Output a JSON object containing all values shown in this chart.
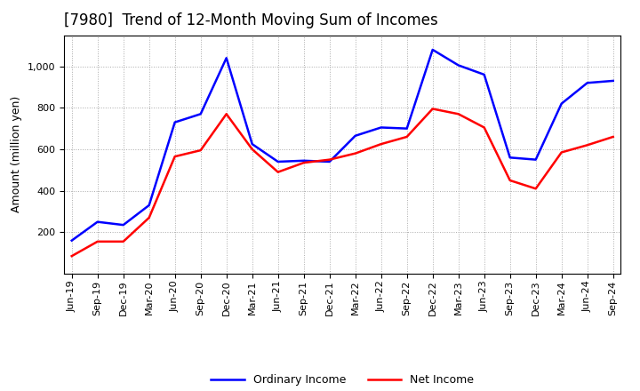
{
  "title": "[7980]  Trend of 12-Month Moving Sum of Incomes",
  "ylabel": "Amount (million yen)",
  "labels": [
    "Jun-19",
    "Sep-19",
    "Dec-19",
    "Mar-20",
    "Jun-20",
    "Sep-20",
    "Dec-20",
    "Mar-21",
    "Jun-21",
    "Sep-21",
    "Dec-21",
    "Mar-22",
    "Jun-22",
    "Sep-22",
    "Dec-22",
    "Mar-23",
    "Jun-23",
    "Sep-23",
    "Dec-23",
    "Mar-24",
    "Jun-24",
    "Sep-24"
  ],
  "ordinary_income": [
    160,
    250,
    235,
    330,
    730,
    770,
    1040,
    625,
    540,
    545,
    540,
    665,
    705,
    700,
    1080,
    1005,
    960,
    560,
    550,
    820,
    920,
    930
  ],
  "net_income": [
    85,
    155,
    155,
    270,
    565,
    595,
    770,
    600,
    490,
    535,
    550,
    580,
    625,
    660,
    795,
    770,
    705,
    450,
    410,
    585,
    620,
    660
  ],
  "ordinary_color": "#0000ff",
  "net_color": "#ff0000",
  "ylim_min": 0,
  "ylim_max": 1150,
  "yticks": [
    200,
    400,
    600,
    800,
    1000
  ],
  "background_color": "#ffffff",
  "plot_bg_color": "#ffffff",
  "grid_color": "#aaaaaa",
  "legend_labels": [
    "Ordinary Income",
    "Net Income"
  ],
  "title_fontsize": 12,
  "axis_fontsize": 9,
  "tick_fontsize": 8,
  "legend_fontsize": 9,
  "line_width": 1.8
}
